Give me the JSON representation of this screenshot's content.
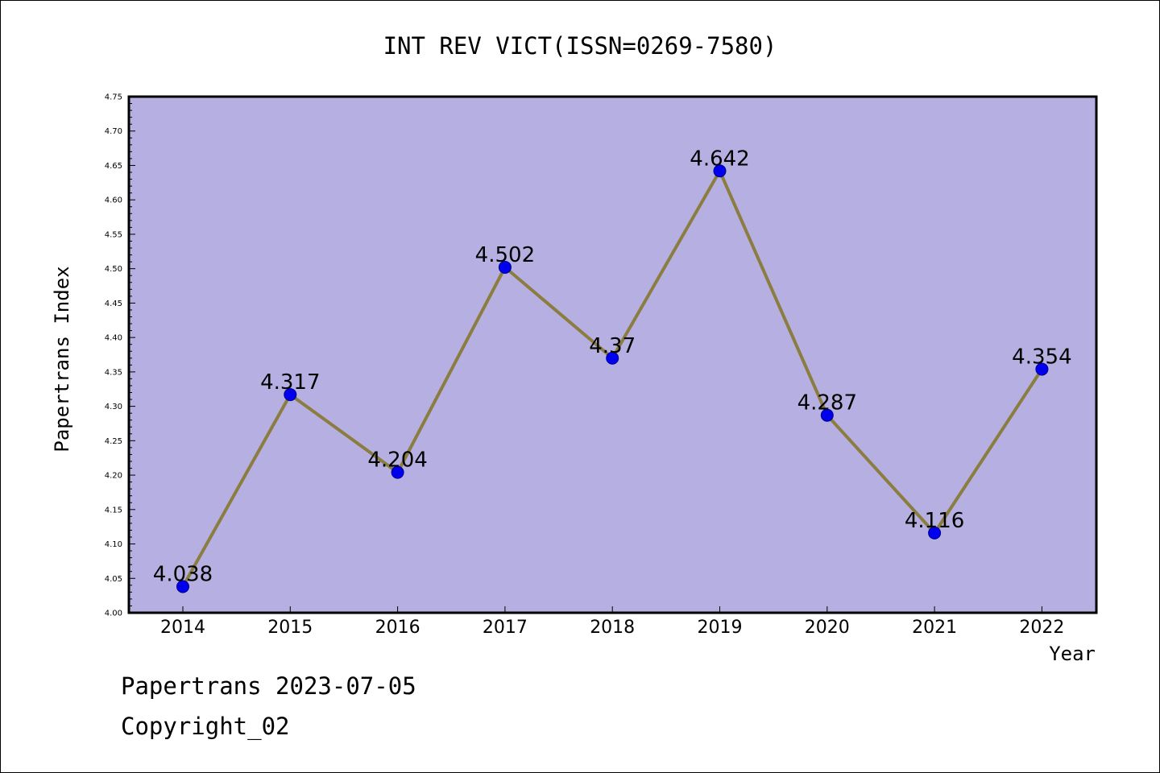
{
  "chart_data": {
    "type": "line",
    "title": "INT REV VICT(ISSN=0269-7580)",
    "xlabel": "Year",
    "ylabel": "Papertrans Index",
    "categories": [
      "2014",
      "2015",
      "2016",
      "2017",
      "2018",
      "2019",
      "2020",
      "2021",
      "2022"
    ],
    "series": [
      {
        "values": [
          4.038,
          4.317,
          4.204,
          4.502,
          4.37,
          4.642,
          4.287,
          4.116,
          4.354
        ],
        "labels": [
          "4.038",
          "4.317",
          "4.204",
          "4.502",
          "4.37",
          "4.642",
          "4.287",
          "4.116",
          "4.354"
        ]
      }
    ],
    "ylim": [
      4.0,
      4.75
    ],
    "yticks": [
      "4.00",
      "4.05",
      "4.10",
      "4.15",
      "4.20",
      "4.25",
      "4.30",
      "4.35",
      "4.40",
      "4.45",
      "4.50",
      "4.55",
      "4.60",
      "4.65",
      "4.70",
      "4.75"
    ],
    "grid": false,
    "legend": "none",
    "colors": {
      "plot_background": "#b5afe2",
      "line": "#8b7d3f",
      "marker": "#0000ee",
      "marker_edge": "#00008b"
    }
  },
  "footer": {
    "line1": "Papertrans 2023-07-05",
    "line2": "Copyright_02"
  }
}
